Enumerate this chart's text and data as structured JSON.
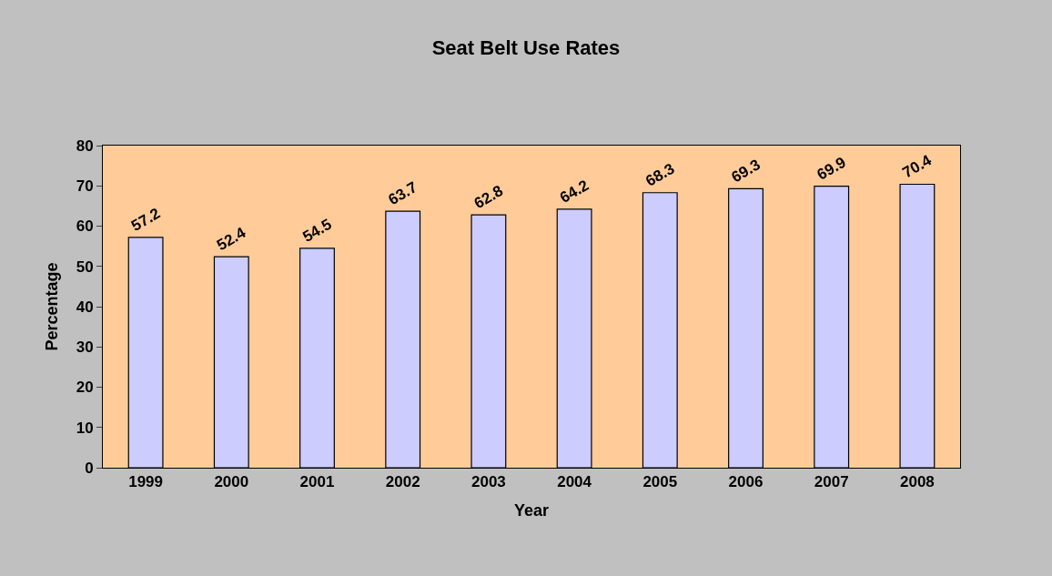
{
  "chart_data": {
    "type": "bar",
    "title": "Seat Belt Use Rates",
    "xlabel": "Year",
    "ylabel": "Percentage",
    "categories": [
      "1999",
      "2000",
      "2001",
      "2002",
      "2003",
      "2004",
      "2005",
      "2006",
      "2007",
      "2008"
    ],
    "values": [
      57.2,
      52.4,
      54.5,
      63.7,
      62.8,
      64.2,
      68.3,
      69.3,
      69.9,
      70.4
    ],
    "color": "#ccccff",
    "ylim": [
      0,
      80
    ],
    "yticks": [
      0,
      10,
      20,
      30,
      40,
      50,
      60,
      70,
      80
    ],
    "grid": false,
    "data_labels": true
  }
}
